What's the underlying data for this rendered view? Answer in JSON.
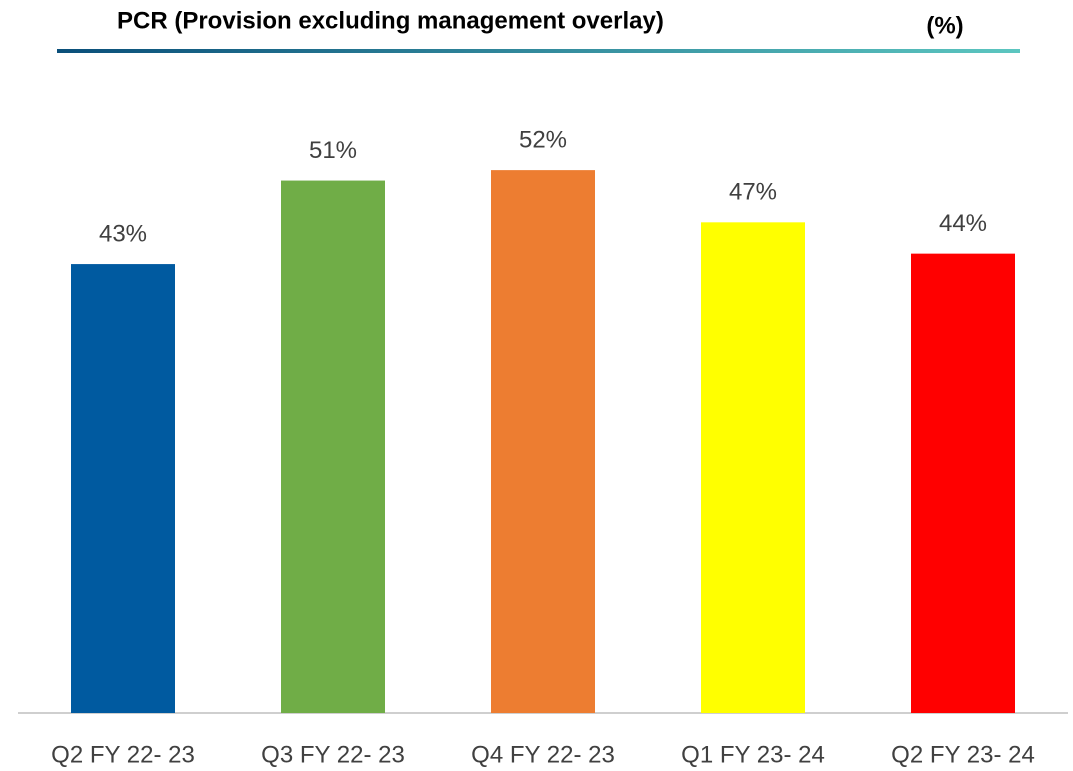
{
  "chart_data": {
    "type": "bar",
    "title": "PCR (Provision excluding management overlay)",
    "unit_label": "(%)",
    "categories": [
      "Q2 FY 22- 23",
      "Q3 FY 22- 23",
      "Q4 FY 22- 23",
      "Q1 FY 23- 24",
      "Q2 FY 23- 24"
    ],
    "values": [
      43,
      51,
      52,
      47,
      44
    ],
    "value_labels": [
      "43%",
      "51%",
      "52%",
      "47%",
      "44%"
    ],
    "colors": [
      "#005aa0",
      "#70ad47",
      "#ed7d31",
      "#ffff00",
      "#ff0000"
    ]
  }
}
